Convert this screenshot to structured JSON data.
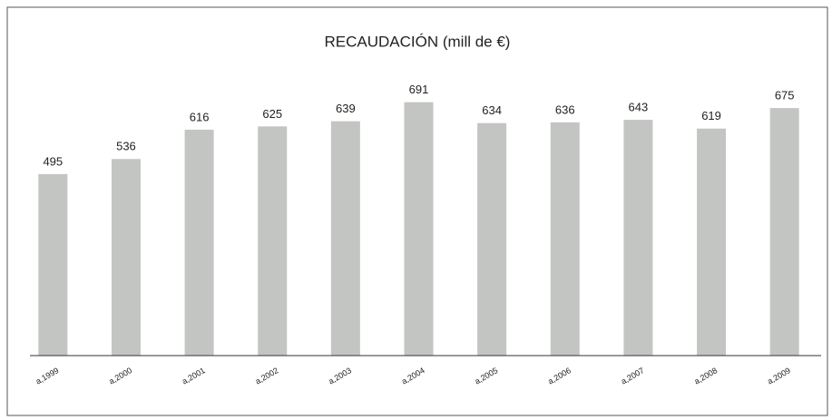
{
  "chart_data": {
    "type": "bar",
    "title": "RECAUDACIÓN (mill de €)",
    "categories": [
      "a,1999",
      "a,2000",
      "a,2001",
      "a,2002",
      "a,2003",
      "a,2004",
      "a,2005",
      "a,2006",
      "a,2007",
      "a,2008",
      "a,2009"
    ],
    "values": [
      495,
      536,
      616,
      625,
      639,
      691,
      634,
      636,
      643,
      619,
      675
    ],
    "color": "#c3c5c2",
    "ylim": [
      0,
      700
    ]
  }
}
